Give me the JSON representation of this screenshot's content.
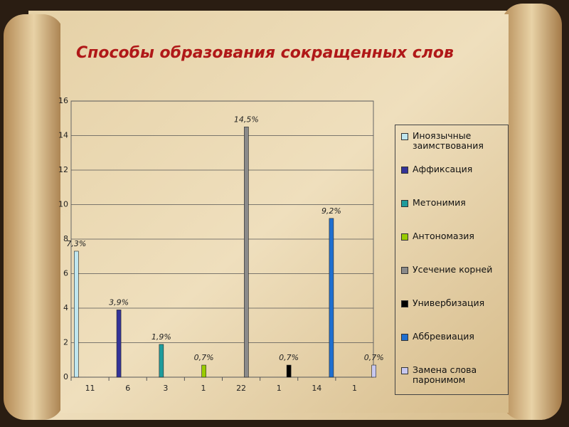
{
  "chart_data": {
    "type": "bar",
    "title": "Способы образования сокращенных слов",
    "categories": [
      "11",
      "6",
      "3",
      "1",
      "22",
      "1",
      "14",
      "1"
    ],
    "series": [
      {
        "name": "Иноязычные заимствования",
        "color": "#bfe6ef",
        "values": [
          7.3,
          null,
          null,
          null,
          null,
          null,
          null,
          null
        ],
        "value_labels": [
          "7,3%",
          null,
          null,
          null,
          null,
          null,
          null,
          null
        ]
      },
      {
        "name": "Аффиксация",
        "color": "#333399",
        "values": [
          null,
          3.9,
          null,
          null,
          null,
          null,
          null,
          null
        ],
        "value_labels": [
          null,
          "3,9%",
          null,
          null,
          null,
          null,
          null,
          null
        ]
      },
      {
        "name": "Метонимия",
        "color": "#1f9c9c",
        "values": [
          null,
          null,
          1.9,
          null,
          null,
          null,
          null,
          null
        ],
        "value_labels": [
          null,
          null,
          "1,9%",
          null,
          null,
          null,
          null,
          null
        ]
      },
      {
        "name": "Антономазия",
        "color": "#99cc00",
        "values": [
          null,
          null,
          null,
          0.7,
          null,
          null,
          null,
          null
        ],
        "value_labels": [
          null,
          null,
          null,
          "0,7%",
          null,
          null,
          null,
          null
        ]
      },
      {
        "name": "Усечение корней",
        "color": "#8a8a8a",
        "values": [
          null,
          null,
          null,
          null,
          14.5,
          null,
          null,
          null
        ],
        "value_labels": [
          null,
          null,
          null,
          null,
          "14,5%",
          null,
          null,
          null
        ]
      },
      {
        "name": "Универбизация",
        "color": "#000000",
        "values": [
          null,
          null,
          null,
          null,
          null,
          0.7,
          null,
          null
        ],
        "value_labels": [
          null,
          null,
          null,
          null,
          null,
          "0,7%",
          null,
          null
        ]
      },
      {
        "name": "Аббревиация",
        "color": "#1f6fd0",
        "values": [
          null,
          null,
          null,
          null,
          null,
          null,
          9.2,
          null
        ],
        "value_labels": [
          null,
          null,
          null,
          null,
          null,
          null,
          "9,2%",
          null
        ]
      },
      {
        "name": "Замена слова паронимом",
        "color": "#c8c8f0",
        "values": [
          null,
          null,
          null,
          null,
          null,
          null,
          null,
          0.7
        ],
        "value_labels": [
          null,
          null,
          null,
          null,
          null,
          null,
          null,
          "0,7%"
        ]
      }
    ],
    "ylim": [
      0,
      16
    ],
    "yticks": [
      0,
      2,
      4,
      6,
      8,
      10,
      12,
      14,
      16
    ],
    "grid": true,
    "legend": "right"
  }
}
